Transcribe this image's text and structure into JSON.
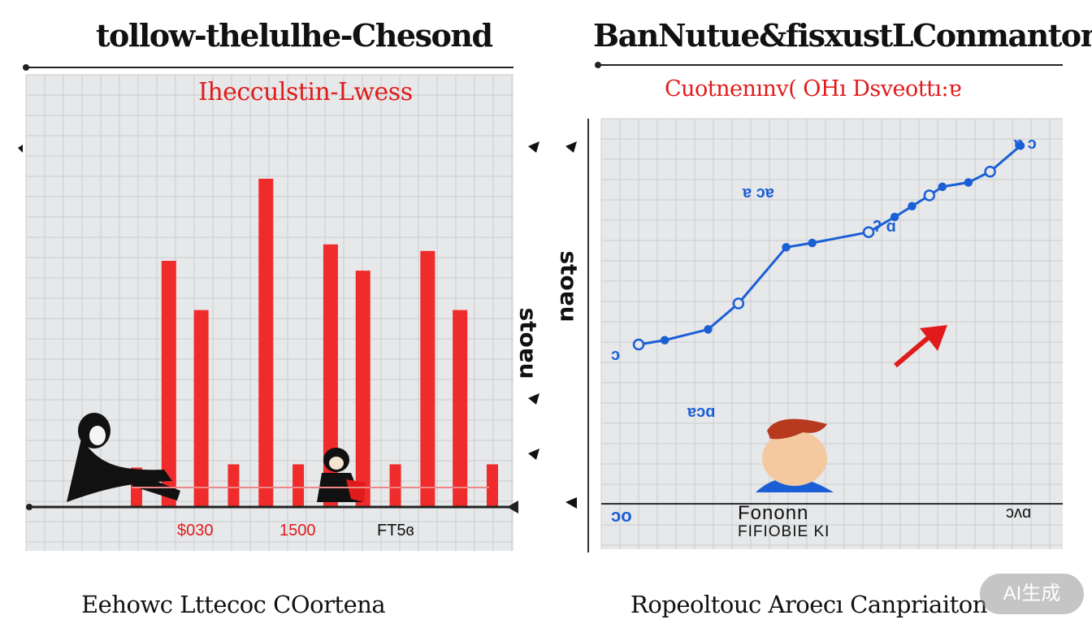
{
  "titles": {
    "left": "tollow-thelulhe-Chesond",
    "right": "BanNutue&fisxustLConmantons"
  },
  "captions": {
    "left": "Eehowc Lttecoc COortena",
    "right": "Ropeoltouc Aroecı Canpriaiton"
  },
  "watermark": "AI生成",
  "colors": {
    "bars": "#ef2b2b",
    "line": "#1b5fd6",
    "arrow": "#e11b1b",
    "grid": "#c9cccf",
    "plot_bg": "#e6e8ea"
  },
  "chart_data": [
    {
      "type": "bar",
      "title": "tollow-thelulhe-Chesond",
      "subtitle": "Ihecculstin-Lwess",
      "ylabel": "stoɐu",
      "x_tick_labels": [
        "$030",
        "1500",
        "FT5ɞ"
      ],
      "ylim": [
        0,
        100
      ],
      "grid": true,
      "values": [
        12,
        75,
        60,
        13,
        100,
        13,
        80,
        72,
        13,
        78,
        60,
        13
      ],
      "caption": "Eehowc Lttecoc COortena"
    },
    {
      "type": "line",
      "title": "BanNutue&fisxustLConmantons",
      "subtitle": "Cuotnenınv( OHı  Dsveottı:ɐ",
      "ylabel": "stoɐu",
      "xlabel": "Fononn",
      "xlabel_secondary": "FIFIOBIE KI",
      "corner_labels": [
        "ɔo",
        "ɔʌɑ"
      ],
      "annotations": [
        "ɐ ɔɐ",
        "ʔ ɑ",
        "ɐ ɔ",
        "ɐɔɑ",
        "ɔ"
      ],
      "xlim": [
        0,
        100
      ],
      "ylim": [
        0,
        100
      ],
      "grid": true,
      "x": [
        6,
        12,
        22,
        29,
        40,
        46,
        59,
        65,
        69,
        73,
        76,
        82,
        87,
        94
      ],
      "y": [
        6,
        8,
        13,
        25,
        51,
        53,
        58,
        65,
        70,
        75,
        79,
        81,
        86,
        98
      ],
      "caption": "Ropeoltouc Aroecı Canpriaiton"
    }
  ]
}
